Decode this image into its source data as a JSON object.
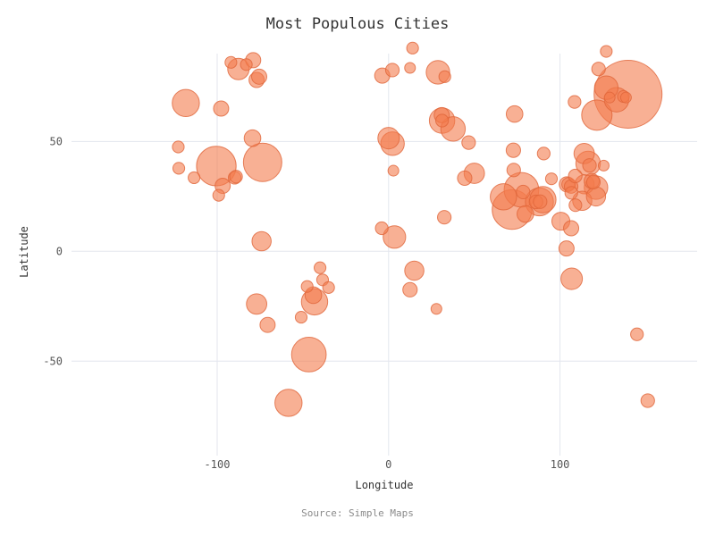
{
  "chart_data": {
    "type": "scatter",
    "title": "Most Populous Cities",
    "xlabel": "Longitude",
    "ylabel": "Latitude",
    "source": "Source: Simple Maps",
    "xlim": [
      -185,
      180
    ],
    "ylim": [
      -93,
      90
    ],
    "x_ticks": [
      {
        "value": -100,
        "label": "-100"
      },
      {
        "value": 0,
        "label": "0"
      },
      {
        "value": 100,
        "label": "100"
      }
    ],
    "y_ticks": [
      {
        "value": 50,
        "label": "50"
      },
      {
        "value": 0,
        "label": "0"
      },
      {
        "value": -50,
        "label": "-50"
      }
    ],
    "grid": true,
    "marker_color": "#f47c4c",
    "marker_stroke": "#e0653a",
    "marker_opacity": 0.6,
    "points": [
      {
        "x": 139.7,
        "y": 71.5,
        "size": 100
      },
      {
        "x": -100.5,
        "y": 38.8,
        "size": 34
      },
      {
        "x": -73.5,
        "y": 40.5,
        "size": 32
      },
      {
        "x": 72.0,
        "y": 19.0,
        "size": 34
      },
      {
        "x": 77.5,
        "y": 28.0,
        "size": 26
      },
      {
        "x": -46.5,
        "y": -47.0,
        "size": 26
      },
      {
        "x": 121.5,
        "y": 62.0,
        "size": 20
      },
      {
        "x": 88.0,
        "y": 22.5,
        "size": 17
      },
      {
        "x": 90.0,
        "y": 23.5,
        "size": 15
      },
      {
        "x": 67.0,
        "y": 24.8,
        "size": 15
      },
      {
        "x": -118.3,
        "y": 67.5,
        "size": 16
      },
      {
        "x": 31.2,
        "y": 59.5,
        "size": 14
      },
      {
        "x": 37.6,
        "y": 55.7,
        "size": 13
      },
      {
        "x": 116.4,
        "y": 40.0,
        "size": 13
      },
      {
        "x": 133.0,
        "y": 69.0,
        "size": 13
      },
      {
        "x": 121.0,
        "y": 29.0,
        "size": 12
      },
      {
        "x": -58.4,
        "y": -69.0,
        "size": 16
      },
      {
        "x": -43.2,
        "y": -23.0,
        "size": 15
      },
      {
        "x": 28.8,
        "y": 81.5,
        "size": 12
      },
      {
        "x": 127.0,
        "y": 74.5,
        "size": 12
      },
      {
        "x": 2.3,
        "y": 49.0,
        "size": 12
      },
      {
        "x": 0.0,
        "y": 51.5,
        "size": 10
      },
      {
        "x": 3.4,
        "y": 6.5,
        "size": 11
      },
      {
        "x": 106.8,
        "y": -12.5,
        "size": 10
      },
      {
        "x": -87.6,
        "y": 83.0,
        "size": 10
      },
      {
        "x": -77.0,
        "y": -24.0,
        "size": 9
      },
      {
        "x": 50.0,
        "y": 35.5,
        "size": 9
      },
      {
        "x": 114.1,
        "y": 44.5,
        "size": 9
      },
      {
        "x": 114.3,
        "y": 30.5,
        "size": 8
      },
      {
        "x": 113.0,
        "y": 23.0,
        "size": 8
      },
      {
        "x": 121.0,
        "y": 25.0,
        "size": 8
      },
      {
        "x": 100.5,
        "y": 13.7,
        "size": 7
      },
      {
        "x": 15.0,
        "y": -8.8,
        "size": 8
      },
      {
        "x": -74.1,
        "y": 4.6,
        "size": 8
      },
      {
        "x": 73.5,
        "y": 62.5,
        "size": 6
      },
      {
        "x": 79.8,
        "y": 17.0,
        "size": 6
      },
      {
        "x": -79.4,
        "y": 51.5,
        "size": 6
      },
      {
        "x": -43.9,
        "y": -20.0,
        "size": 6
      },
      {
        "x": 104.0,
        "y": 30.5,
        "size": 5
      },
      {
        "x": 106.5,
        "y": 10.5,
        "size": 5
      },
      {
        "x": 103.8,
        "y": 1.3,
        "size": 5
      },
      {
        "x": 118.5,
        "y": 32.0,
        "size": 5
      },
      {
        "x": 31.0,
        "y": 62.0,
        "size": 5
      },
      {
        "x": -77.0,
        "y": 78.0,
        "size": 5
      },
      {
        "x": -75.5,
        "y": 79.5,
        "size": 5
      },
      {
        "x": -79.0,
        "y": 87.0,
        "size": 5
      },
      {
        "x": -96.8,
        "y": 29.8,
        "size": 5
      },
      {
        "x": -97.7,
        "y": 65.0,
        "size": 5
      },
      {
        "x": -70.6,
        "y": -33.5,
        "size": 5
      },
      {
        "x": 44.4,
        "y": 33.3,
        "size": 4.5
      },
      {
        "x": 12.5,
        "y": -17.5,
        "size": 4.5
      },
      {
        "x": -3.7,
        "y": 80.0,
        "size": 5
      },
      {
        "x": 2.2,
        "y": 82.5,
        "size": 4
      },
      {
        "x": 72.8,
        "y": 46.0,
        "size": 4.5
      },
      {
        "x": 73.0,
        "y": 37.0,
        "size": 4
      },
      {
        "x": 32.5,
        "y": 15.5,
        "size": 4
      },
      {
        "x": 105.0,
        "y": 30.5,
        "size": 4
      },
      {
        "x": 106.5,
        "y": 29.5,
        "size": 4
      },
      {
        "x": 108.9,
        "y": 34.3,
        "size": 4
      },
      {
        "x": 117.2,
        "y": 39.1,
        "size": 4
      },
      {
        "x": 119.5,
        "y": 31.5,
        "size": 4
      },
      {
        "x": 122.5,
        "y": 83.0,
        "size": 4
      },
      {
        "x": 86.0,
        "y": 22.5,
        "size": 4
      },
      {
        "x": 88.4,
        "y": 22.6,
        "size": 4
      },
      {
        "x": 78.5,
        "y": 27.0,
        "size": 4
      },
      {
        "x": 90.5,
        "y": 44.5,
        "size": 3.5
      },
      {
        "x": 108.5,
        "y": 68.0,
        "size": 3.5
      },
      {
        "x": 109.0,
        "y": 21.0,
        "size": 3.5
      },
      {
        "x": 106.6,
        "y": 26.6,
        "size": 3.5
      },
      {
        "x": -89.8,
        "y": 33.5,
        "size": 3.5
      },
      {
        "x": -89.0,
        "y": 34.0,
        "size": 3.5
      },
      {
        "x": -99.1,
        "y": 25.5,
        "size": 3
      },
      {
        "x": -113.5,
        "y": 33.5,
        "size": 3
      },
      {
        "x": -122.4,
        "y": 37.8,
        "size": 3
      },
      {
        "x": -122.7,
        "y": 47.5,
        "size": 3
      },
      {
        "x": 151.2,
        "y": -68.0,
        "size": 4
      },
      {
        "x": 144.9,
        "y": -37.8,
        "size": 3.5
      },
      {
        "x": 46.7,
        "y": 49.5,
        "size": 4
      },
      {
        "x": 31.2,
        "y": 59.5,
        "size": 3.5
      },
      {
        "x": 32.8,
        "y": 79.5,
        "size": 3
      },
      {
        "x": 127.0,
        "y": 91.0,
        "size": 3
      },
      {
        "x": 125.5,
        "y": 39.0,
        "size": 2.5
      },
      {
        "x": 129.0,
        "y": 70.0,
        "size": 2.5
      },
      {
        "x": 137.0,
        "y": 70.5,
        "size": 3
      },
      {
        "x": 138.5,
        "y": 70.0,
        "size": 2.5
      },
      {
        "x": 12.5,
        "y": 83.5,
        "size": 2.5
      },
      {
        "x": 2.8,
        "y": 36.7,
        "size": 2.5
      },
      {
        "x": -4.0,
        "y": 10.5,
        "size": 3.5
      },
      {
        "x": 14.0,
        "y": 92.5,
        "size": 3
      },
      {
        "x": 27.9,
        "y": -26.2,
        "size": 2.5
      },
      {
        "x": -40.0,
        "y": -7.5,
        "size": 3
      },
      {
        "x": -38.5,
        "y": -13.0,
        "size": 3
      },
      {
        "x": -35.0,
        "y": -16.5,
        "size": 3
      },
      {
        "x": -47.5,
        "y": -16.0,
        "size": 3
      },
      {
        "x": -51.0,
        "y": -30.0,
        "size": 3
      },
      {
        "x": -92.0,
        "y": 86.0,
        "size": 3
      },
      {
        "x": -83.0,
        "y": 85.0,
        "size": 3
      },
      {
        "x": 95.0,
        "y": 33.0,
        "size": 3
      }
    ]
  }
}
